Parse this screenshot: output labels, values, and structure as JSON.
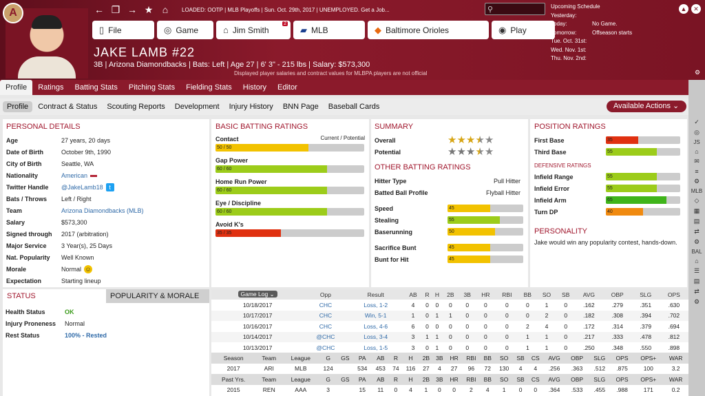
{
  "header": {
    "loaded": "LOADED: OOTP",
    "section": "MLB Playoffs",
    "date": "Sun. Oct. 29th, 2017",
    "job": "UNEMPLOYED. Get a Job...",
    "disclaimer": "Displayed player salaries and contract values for MLBPA players are not official"
  },
  "buttons": {
    "file": "File",
    "game": "Game",
    "manager": "Jim Smith",
    "manager_badge": "2",
    "league": "MLB",
    "team": "Baltimore Orioles",
    "play": "Play"
  },
  "schedule": {
    "title": "Upcoming Schedule",
    "rows": [
      {
        "day": "Yesterday:",
        "text": ""
      },
      {
        "day": "Today:",
        "text": "No Game."
      },
      {
        "day": "Tomorrow:",
        "text": "Offseason starts"
      },
      {
        "day": "Tue. Oct. 31st:",
        "text": ""
      },
      {
        "day": "Wed. Nov. 1st:",
        "text": ""
      },
      {
        "day": "Thu. Nov. 2nd:",
        "text": ""
      }
    ]
  },
  "player": {
    "name": "JAKE LAMB  #22",
    "line": "3B | Arizona Diamondbacks | Bats: Left | Age 27 | 6' 3\" - 215 lbs | Salary: $573,300"
  },
  "tabs": [
    "Profile",
    "Ratings",
    "Batting Stats",
    "Pitching Stats",
    "Fielding Stats",
    "History",
    "Editor"
  ],
  "subtabs": [
    "Profile",
    "Contract & Status",
    "Scouting Reports",
    "Development",
    "Injury History",
    "BNN Page",
    "Baseball Cards"
  ],
  "available_actions": "Available Actions",
  "personal": {
    "title": "PERSONAL DETAILS",
    "rows": [
      [
        "Age",
        "27 years, 20 days"
      ],
      [
        "Date of Birth",
        "October 9th, 1990"
      ],
      [
        "City of Birth",
        "Seattle, WA"
      ],
      [
        "Nationality",
        "American"
      ],
      [
        "Twitter Handle",
        "@JakeLamb18"
      ],
      [
        "Bats / Throws",
        "Left / Right"
      ],
      [
        "Team",
        "Arizona Diamondbacks (MLB)"
      ],
      [
        "Salary",
        "$573,300"
      ],
      [
        "Signed through",
        "2017 (arbitration)"
      ],
      [
        "Major Service",
        "3 Year(s), 25 Days"
      ],
      [
        "Nat. Popularity",
        "Well Known"
      ],
      [
        "Morale",
        "Normal"
      ],
      [
        "Expectation",
        "Starting lineup"
      ]
    ]
  },
  "batting": {
    "title": "BASIC BATTING RATINGS",
    "legend": "Current / Potential",
    "rows": [
      {
        "label": "Contact",
        "text": "50 / 50",
        "cur": 50,
        "pot": 50,
        "color": "#f2c200"
      },
      {
        "label": "Gap Power",
        "text": "60 / 60",
        "cur": 60,
        "pot": 60,
        "color": "#9ccc1a"
      },
      {
        "label": "Home Run Power",
        "text": "60 / 60",
        "cur": 60,
        "pot": 60,
        "color": "#9ccc1a"
      },
      {
        "label": "Eye / Discipline",
        "text": "60 / 60",
        "cur": 60,
        "pot": 60,
        "color": "#9ccc1a"
      },
      {
        "label": "Avoid K's",
        "text": "35 / 35",
        "cur": 35,
        "pot": 35,
        "color": "#e03010"
      }
    ]
  },
  "summary": {
    "title": "SUMMARY",
    "overall": "Overall",
    "potential": "Potential",
    "overall_stars": 3.5,
    "potential_stars": 3.5
  },
  "other": {
    "title": "OTHER BATTING RATINGS",
    "rows": [
      [
        "Hitter Type",
        "Pull Hitter"
      ],
      [
        "Batted Ball Profile",
        "Flyball Hitter"
      ]
    ],
    "bars": [
      {
        "label": "Speed",
        "v": 45,
        "color": "#f2c200"
      },
      {
        "label": "Stealing",
        "v": 55,
        "color": "#9ccc1a"
      },
      {
        "label": "Baserunning",
        "v": 50,
        "color": "#f2c200"
      },
      {
        "label": "Sacrifice Bunt",
        "v": 45,
        "color": "#f2c200"
      },
      {
        "label": "Bunt for Hit",
        "v": 45,
        "color": "#f2c200"
      }
    ]
  },
  "position": {
    "title": "POSITION RATINGS",
    "bars": [
      {
        "label": "First Base",
        "v": 35,
        "color": "#e03010"
      },
      {
        "label": "Third Base",
        "v": 55,
        "color": "#9ccc1a"
      }
    ],
    "def_title": "DEFENSIVE RATINGS",
    "def": [
      {
        "label": "Infield Range",
        "v": 55,
        "color": "#9ccc1a"
      },
      {
        "label": "Infield Error",
        "v": 55,
        "color": "#9ccc1a"
      },
      {
        "label": "Infield Arm",
        "v": 65,
        "color": "#3fb41a"
      },
      {
        "label": "Turn DP",
        "v": 40,
        "color": "#f08a10"
      }
    ]
  },
  "personality": {
    "title": "PERSONALITY",
    "text": "Jake would win any popularity contest, hands-down."
  },
  "status": {
    "tab1": "STATUS",
    "tab2": "POPULARITY & MORALE",
    "rows": [
      [
        "Health Status",
        "OK"
      ],
      [
        "Injury Proneness",
        "Normal"
      ],
      [
        "Rest Status",
        "100% - Rested"
      ]
    ]
  },
  "gamelog": {
    "selector": "Game Log",
    "headers": [
      "Opp",
      "Result",
      "AB",
      "R",
      "H",
      "2B",
      "3B",
      "HR",
      "RBI",
      "BB",
      "SO",
      "SB",
      "AVG",
      "OBP",
      "SLG",
      "OPS"
    ],
    "rows": [
      [
        "10/18/2017",
        "CHC",
        "Loss, 1-2",
        "4",
        "0",
        "0",
        "0",
        "0",
        "0",
        "0",
        "0",
        "1",
        "0",
        ".162",
        ".279",
        ".351",
        ".630"
      ],
      [
        "10/17/2017",
        "CHC",
        "Win, 5-1",
        "1",
        "0",
        "1",
        "1",
        "0",
        "0",
        "0",
        "0",
        "2",
        "0",
        ".182",
        ".308",
        ".394",
        ".702"
      ],
      [
        "10/16/2017",
        "CHC",
        "Loss, 4-6",
        "6",
        "0",
        "0",
        "0",
        "0",
        "0",
        "0",
        "2",
        "4",
        "0",
        ".172",
        ".314",
        ".379",
        ".694"
      ],
      [
        "10/14/2017",
        "@CHC",
        "Loss, 3-4",
        "3",
        "1",
        "1",
        "0",
        "0",
        "0",
        "0",
        "1",
        "1",
        "0",
        ".217",
        ".333",
        ".478",
        ".812"
      ],
      [
        "10/13/2017",
        "@CHC",
        "Loss, 1-5",
        "3",
        "0",
        "1",
        "0",
        "0",
        "0",
        "0",
        "1",
        "1",
        "0",
        ".250",
        ".348",
        ".550",
        ".898"
      ]
    ]
  },
  "season": {
    "headers": [
      "Season",
      "Team",
      "League",
      "G",
      "GS",
      "PA",
      "AB",
      "R",
      "H",
      "2B",
      "3B",
      "HR",
      "RBI",
      "BB",
      "SO",
      "SB",
      "CS",
      "AVG",
      "OBP",
      "SLG",
      "OPS",
      "OPS+",
      "WAR"
    ],
    "row": [
      "2017",
      "ARI",
      "MLB",
      "124",
      "",
      "534",
      "453",
      "74",
      "116",
      "27",
      "4",
      "27",
      "96",
      "72",
      "130",
      "4",
      "4",
      ".256",
      ".363",
      ".512",
      ".875",
      "100",
      "3.2"
    ],
    "past_headers": [
      "Past Yrs.",
      "Team",
      "League",
      "G",
      "GS",
      "PA",
      "AB",
      "R",
      "H",
      "2B",
      "3B",
      "HR",
      "RBI",
      "BB",
      "SO",
      "SB",
      "CS",
      "AVG",
      "OBP",
      "SLG",
      "OPS",
      "OPS+",
      "WAR"
    ],
    "past_row": [
      "2015",
      "REN",
      "AAA",
      "3",
      "",
      "15",
      "11",
      "0",
      "4",
      "1",
      "0",
      "0",
      "2",
      "4",
      "1",
      "0",
      "0",
      ".364",
      ".533",
      ".455",
      ".988",
      "171",
      "0.2"
    ]
  }
}
